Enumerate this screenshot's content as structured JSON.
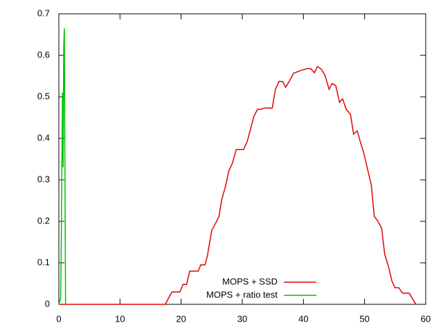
{
  "chart_data": {
    "type": "line",
    "xlim": [
      0,
      60
    ],
    "xticks": [
      0,
      10,
      20,
      30,
      40,
      50,
      60
    ],
    "ylim": [
      0,
      0.7
    ],
    "yticks": [
      0,
      0.1,
      0.2,
      0.3,
      0.4,
      0.5,
      0.6,
      0.7
    ],
    "legend": "lower-right",
    "series": [
      {
        "name": "MOPS + SSD",
        "color": "#e00000",
        "x": [
          0,
          17.4,
          18.5,
          19.8,
          20.3,
          20.9,
          21.4,
          22.8,
          23.2,
          23.9,
          24.3,
          25,
          25.7,
          26.2,
          26.6,
          27.3,
          27.8,
          28.4,
          29,
          30.2,
          30.8,
          31.4,
          31.9,
          32.5,
          33.1,
          33.6,
          34.9,
          35.4,
          36,
          36.6,
          37.1,
          37.7,
          38.4,
          39.5,
          40.6,
          41.2,
          41.8,
          42.3,
          42.9,
          43.5,
          44.2,
          44.7,
          45.3,
          45.9,
          46.4,
          47,
          47.7,
          48.2,
          48.8,
          49.4,
          49.9,
          50.5,
          51.1,
          51.6,
          52.2,
          52.8,
          53.3,
          53.9,
          54.5,
          55,
          55.6,
          56.2,
          57.3,
          58.4
        ],
        "values": [
          0,
          0,
          0.03,
          0.03,
          0.048,
          0.048,
          0.08,
          0.08,
          0.095,
          0.095,
          0.117,
          0.178,
          0.197,
          0.212,
          0.25,
          0.287,
          0.322,
          0.34,
          0.373,
          0.373,
          0.392,
          0.425,
          0.453,
          0.47,
          0.47,
          0.473,
          0.473,
          0.517,
          0.537,
          0.537,
          0.523,
          0.538,
          0.557,
          0.563,
          0.568,
          0.568,
          0.558,
          0.573,
          0.567,
          0.553,
          0.518,
          0.532,
          0.527,
          0.487,
          0.495,
          0.47,
          0.458,
          0.41,
          0.418,
          0.387,
          0.363,
          0.325,
          0.288,
          0.212,
          0.2,
          0.183,
          0.12,
          0.092,
          0.055,
          0.04,
          0.04,
          0.027,
          0.027,
          0
        ]
      },
      {
        "name": "MOPS + ratio test",
        "color": "#00c000",
        "x": [
          0,
          0.3,
          0.4,
          0.6,
          0.7,
          0.8,
          0.9,
          1.0,
          1.1,
          1.2
        ],
        "values": [
          0,
          0.015,
          0.155,
          0.51,
          0.33,
          0.62,
          0.665,
          0.32,
          0,
          0
        ]
      }
    ]
  }
}
